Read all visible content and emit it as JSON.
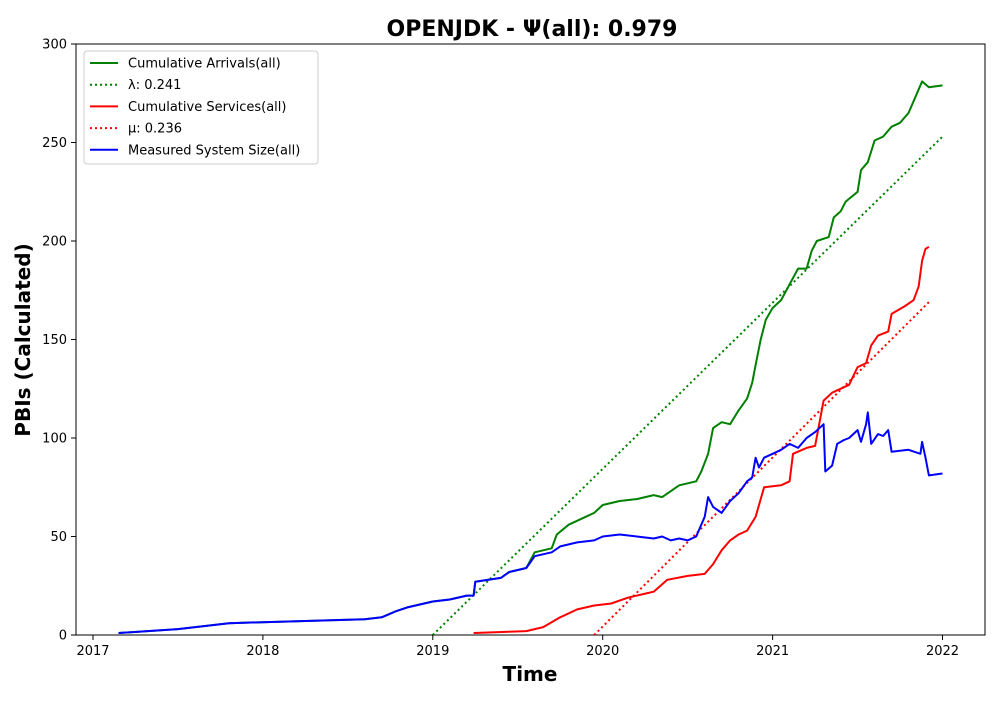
{
  "chart_data": {
    "type": "line",
    "title": "OPENJDK -  Ψ(all): 0.979",
    "xlabel": "Time",
    "ylabel": "PBIs (Calculated)",
    "xlim": [
      2016.9,
      2022.25
    ],
    "ylim": [
      0,
      300
    ],
    "xticks": [
      2017,
      2018,
      2019,
      2020,
      2021,
      2022
    ],
    "xtick_labels": [
      "2017",
      "2018",
      "2019",
      "2020",
      "2021",
      "2022"
    ],
    "yticks": [
      0,
      50,
      100,
      150,
      200,
      250,
      300
    ],
    "ytick_labels": [
      "0",
      "50",
      "100",
      "150",
      "200",
      "250",
      "300"
    ],
    "grid": false,
    "legend_position": "upper-left",
    "series": [
      {
        "name": "Cumulative Arrivals(all)",
        "color": "#008000",
        "style": "solid",
        "points": [
          [
            2017.15,
            1
          ],
          [
            2017.5,
            3
          ],
          [
            2017.8,
            6
          ],
          [
            2018.2,
            7
          ],
          [
            2018.6,
            8
          ],
          [
            2018.7,
            9
          ],
          [
            2018.78,
            12
          ],
          [
            2018.85,
            14
          ],
          [
            2019.0,
            17
          ],
          [
            2019.1,
            18
          ],
          [
            2019.2,
            20
          ],
          [
            2019.24,
            20
          ],
          [
            2019.25,
            27
          ],
          [
            2019.4,
            29
          ],
          [
            2019.45,
            32
          ],
          [
            2019.55,
            34
          ],
          [
            2019.6,
            42
          ],
          [
            2019.7,
            44
          ],
          [
            2019.73,
            51
          ],
          [
            2019.8,
            56
          ],
          [
            2019.9,
            60
          ],
          [
            2019.95,
            62
          ],
          [
            2020.0,
            66
          ],
          [
            2020.1,
            68
          ],
          [
            2020.2,
            69
          ],
          [
            2020.3,
            71
          ],
          [
            2020.35,
            70
          ],
          [
            2020.4,
            73
          ],
          [
            2020.45,
            76
          ],
          [
            2020.55,
            78
          ],
          [
            2020.58,
            83
          ],
          [
            2020.62,
            92
          ],
          [
            2020.65,
            105
          ],
          [
            2020.7,
            108
          ],
          [
            2020.75,
            107
          ],
          [
            2020.8,
            114
          ],
          [
            2020.85,
            120
          ],
          [
            2020.88,
            128
          ],
          [
            2020.9,
            137
          ],
          [
            2020.93,
            150
          ],
          [
            2020.96,
            160
          ],
          [
            2021.0,
            166
          ],
          [
            2021.05,
            170
          ],
          [
            2021.1,
            178
          ],
          [
            2021.15,
            186
          ],
          [
            2021.2,
            186
          ],
          [
            2021.23,
            195
          ],
          [
            2021.26,
            200
          ],
          [
            2021.33,
            202
          ],
          [
            2021.36,
            212
          ],
          [
            2021.4,
            215
          ],
          [
            2021.43,
            220
          ],
          [
            2021.5,
            225
          ],
          [
            2021.52,
            236
          ],
          [
            2021.56,
            240
          ],
          [
            2021.6,
            251
          ],
          [
            2021.65,
            253
          ],
          [
            2021.7,
            258
          ],
          [
            2021.75,
            260
          ],
          [
            2021.8,
            265
          ],
          [
            2021.85,
            275
          ],
          [
            2021.88,
            281
          ],
          [
            2021.92,
            278
          ],
          [
            2022.0,
            279
          ]
        ]
      },
      {
        "name": "λ: 0.241",
        "color": "#008000",
        "style": "dotted",
        "points": [
          [
            2019.0,
            0
          ],
          [
            2022.0,
            253
          ]
        ]
      },
      {
        "name": "Cumulative Services(all)",
        "color": "#ff0000",
        "style": "solid",
        "points": [
          [
            2019.24,
            1
          ],
          [
            2019.55,
            2
          ],
          [
            2019.65,
            4
          ],
          [
            2019.75,
            9
          ],
          [
            2019.85,
            13
          ],
          [
            2019.95,
            15
          ],
          [
            2020.05,
            16
          ],
          [
            2020.15,
            19
          ],
          [
            2020.25,
            21
          ],
          [
            2020.3,
            22
          ],
          [
            2020.38,
            28
          ],
          [
            2020.5,
            30
          ],
          [
            2020.6,
            31
          ],
          [
            2020.65,
            36
          ],
          [
            2020.7,
            43
          ],
          [
            2020.75,
            48
          ],
          [
            2020.8,
            51
          ],
          [
            2020.85,
            53
          ],
          [
            2020.9,
            60
          ],
          [
            2020.95,
            75
          ],
          [
            2021.05,
            76
          ],
          [
            2021.1,
            78
          ],
          [
            2021.12,
            92
          ],
          [
            2021.2,
            95
          ],
          [
            2021.25,
            96
          ],
          [
            2021.3,
            119
          ],
          [
            2021.35,
            123
          ],
          [
            2021.45,
            127
          ],
          [
            2021.5,
            136
          ],
          [
            2021.55,
            138
          ],
          [
            2021.58,
            147
          ],
          [
            2021.62,
            152
          ],
          [
            2021.68,
            154
          ],
          [
            2021.7,
            163
          ],
          [
            2021.78,
            167
          ],
          [
            2021.83,
            170
          ],
          [
            2021.86,
            177
          ],
          [
            2021.88,
            190
          ],
          [
            2021.9,
            196
          ],
          [
            2021.92,
            197
          ]
        ]
      },
      {
        "name": "μ: 0.236",
        "color": "#ff0000",
        "style": "dotted",
        "points": [
          [
            2019.95,
            0
          ],
          [
            2021.92,
            169
          ]
        ]
      },
      {
        "name": "Measured System Size(all)",
        "color": "#0000ff",
        "style": "solid",
        "points": [
          [
            2017.15,
            1
          ],
          [
            2017.5,
            3
          ],
          [
            2017.8,
            6
          ],
          [
            2018.2,
            7
          ],
          [
            2018.6,
            8
          ],
          [
            2018.7,
            9
          ],
          [
            2018.78,
            12
          ],
          [
            2018.85,
            14
          ],
          [
            2019.0,
            17
          ],
          [
            2019.1,
            18
          ],
          [
            2019.2,
            20
          ],
          [
            2019.24,
            20
          ],
          [
            2019.25,
            27
          ],
          [
            2019.4,
            29
          ],
          [
            2019.45,
            32
          ],
          [
            2019.55,
            34
          ],
          [
            2019.6,
            40
          ],
          [
            2019.7,
            42
          ],
          [
            2019.75,
            45
          ],
          [
            2019.85,
            47
          ],
          [
            2019.95,
            48
          ],
          [
            2020.0,
            50
          ],
          [
            2020.1,
            51
          ],
          [
            2020.2,
            50
          ],
          [
            2020.3,
            49
          ],
          [
            2020.35,
            50
          ],
          [
            2020.4,
            48
          ],
          [
            2020.45,
            49
          ],
          [
            2020.5,
            48
          ],
          [
            2020.55,
            50
          ],
          [
            2020.6,
            60
          ],
          [
            2020.62,
            70
          ],
          [
            2020.65,
            65
          ],
          [
            2020.7,
            62
          ],
          [
            2020.75,
            68
          ],
          [
            2020.8,
            72
          ],
          [
            2020.85,
            78
          ],
          [
            2020.88,
            80
          ],
          [
            2020.9,
            90
          ],
          [
            2020.92,
            85
          ],
          [
            2020.95,
            90
          ],
          [
            2021.0,
            92
          ],
          [
            2021.05,
            94
          ],
          [
            2021.1,
            97
          ],
          [
            2021.15,
            95
          ],
          [
            2021.2,
            100
          ],
          [
            2021.25,
            103
          ],
          [
            2021.3,
            107
          ],
          [
            2021.31,
            83
          ],
          [
            2021.35,
            86
          ],
          [
            2021.38,
            97
          ],
          [
            2021.42,
            99
          ],
          [
            2021.45,
            100
          ],
          [
            2021.5,
            104
          ],
          [
            2021.52,
            98
          ],
          [
            2021.55,
            107
          ],
          [
            2021.56,
            113
          ],
          [
            2021.58,
            97
          ],
          [
            2021.62,
            102
          ],
          [
            2021.65,
            101
          ],
          [
            2021.68,
            104
          ],
          [
            2021.7,
            93
          ],
          [
            2021.8,
            94
          ],
          [
            2021.87,
            92
          ],
          [
            2021.88,
            98
          ],
          [
            2021.9,
            90
          ],
          [
            2021.92,
            81
          ],
          [
            2022.0,
            82
          ]
        ]
      }
    ]
  }
}
